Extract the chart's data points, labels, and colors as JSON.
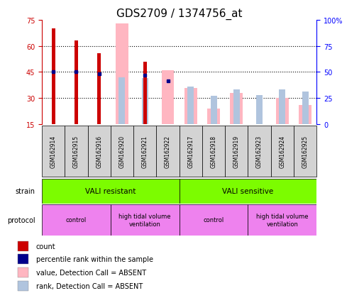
{
  "title": "GDS2709 / 1374756_at",
  "samples": [
    "GSM162914",
    "GSM162915",
    "GSM162916",
    "GSM162920",
    "GSM162921",
    "GSM162922",
    "GSM162917",
    "GSM162918",
    "GSM162919",
    "GSM162923",
    "GSM162924",
    "GSM162925"
  ],
  "count_values": [
    70,
    63,
    56,
    null,
    51,
    null,
    null,
    null,
    null,
    null,
    null,
    null
  ],
  "rank_values": [
    45,
    45,
    44,
    null,
    43,
    40,
    null,
    null,
    null,
    null,
    null,
    null
  ],
  "absent_value_bars": [
    null,
    null,
    null,
    73,
    null,
    46,
    36,
    24,
    33,
    null,
    30,
    26
  ],
  "absent_rank_bars": [
    null,
    null,
    null,
    45,
    44,
    null,
    36,
    27,
    33,
    28,
    33,
    31
  ],
  "ylim_left": [
    15,
    75
  ],
  "ylim_right": [
    0,
    100
  ],
  "yticks_left": [
    15,
    30,
    45,
    60,
    75
  ],
  "yticks_right": [
    0,
    25,
    50,
    75,
    100
  ],
  "yticklabels_right": [
    "0",
    "25",
    "50",
    "75",
    "100%"
  ],
  "left_axis_color": "#cc0000",
  "right_axis_color": "#0000ff",
  "count_color": "#cc0000",
  "rank_color": "#00008b",
  "absent_value_color": "#ffb6c1",
  "absent_rank_color": "#b0c4de",
  "bg_color_plot": "#ffffff",
  "bg_color_samples": "#d3d3d3",
  "title_fontsize": 11,
  "tick_fontsize": 7,
  "strain_groups": [
    {
      "label": "VALI resistant",
      "start": 0,
      "end": 6,
      "color": "#7cfc00"
    },
    {
      "label": "VALI sensitive",
      "start": 6,
      "end": 12,
      "color": "#7cfc00"
    }
  ],
  "protocol_groups": [
    {
      "label": "control",
      "start": 0,
      "end": 3,
      "color": "#ee82ee"
    },
    {
      "label": "high tidal volume\nventilation",
      "start": 3,
      "end": 6,
      "color": "#ee82ee"
    },
    {
      "label": "control",
      "start": 6,
      "end": 9,
      "color": "#ee82ee"
    },
    {
      "label": "high tidal volume\nventilation",
      "start": 9,
      "end": 12,
      "color": "#ee82ee"
    }
  ],
  "legend_items": [
    {
      "label": "count",
      "color": "#cc0000"
    },
    {
      "label": "percentile rank within the sample",
      "color": "#00008b"
    },
    {
      "label": "value, Detection Call = ABSENT",
      "color": "#ffb6c1"
    },
    {
      "label": "rank, Detection Call = ABSENT",
      "color": "#b0c4de"
    }
  ],
  "figsize": [
    5.13,
    4.14
  ],
  "dpi": 100
}
